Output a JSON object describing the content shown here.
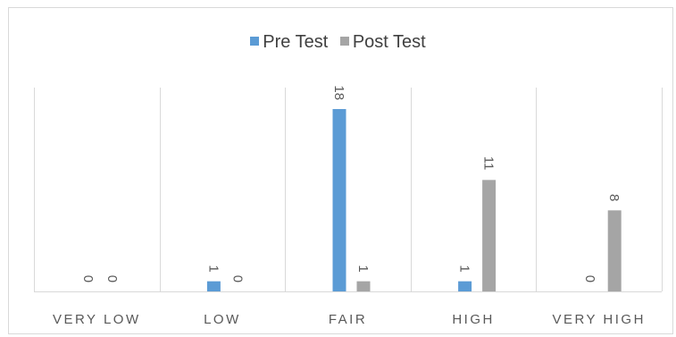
{
  "chart_data": {
    "type": "bar",
    "categories": [
      "VERY LOW",
      "LOW",
      "FAIR",
      "HIGH",
      "VERY HIGH"
    ],
    "series": [
      {
        "name": "Pre Test",
        "values": [
          0,
          1,
          18,
          1,
          0
        ],
        "color": "#5b9bd5"
      },
      {
        "name": "Post Test",
        "values": [
          0,
          0,
          1,
          11,
          8
        ],
        "color": "#a5a5a5"
      }
    ],
    "ylim": [
      0,
      18
    ],
    "grid": false,
    "legend_position": "top"
  }
}
